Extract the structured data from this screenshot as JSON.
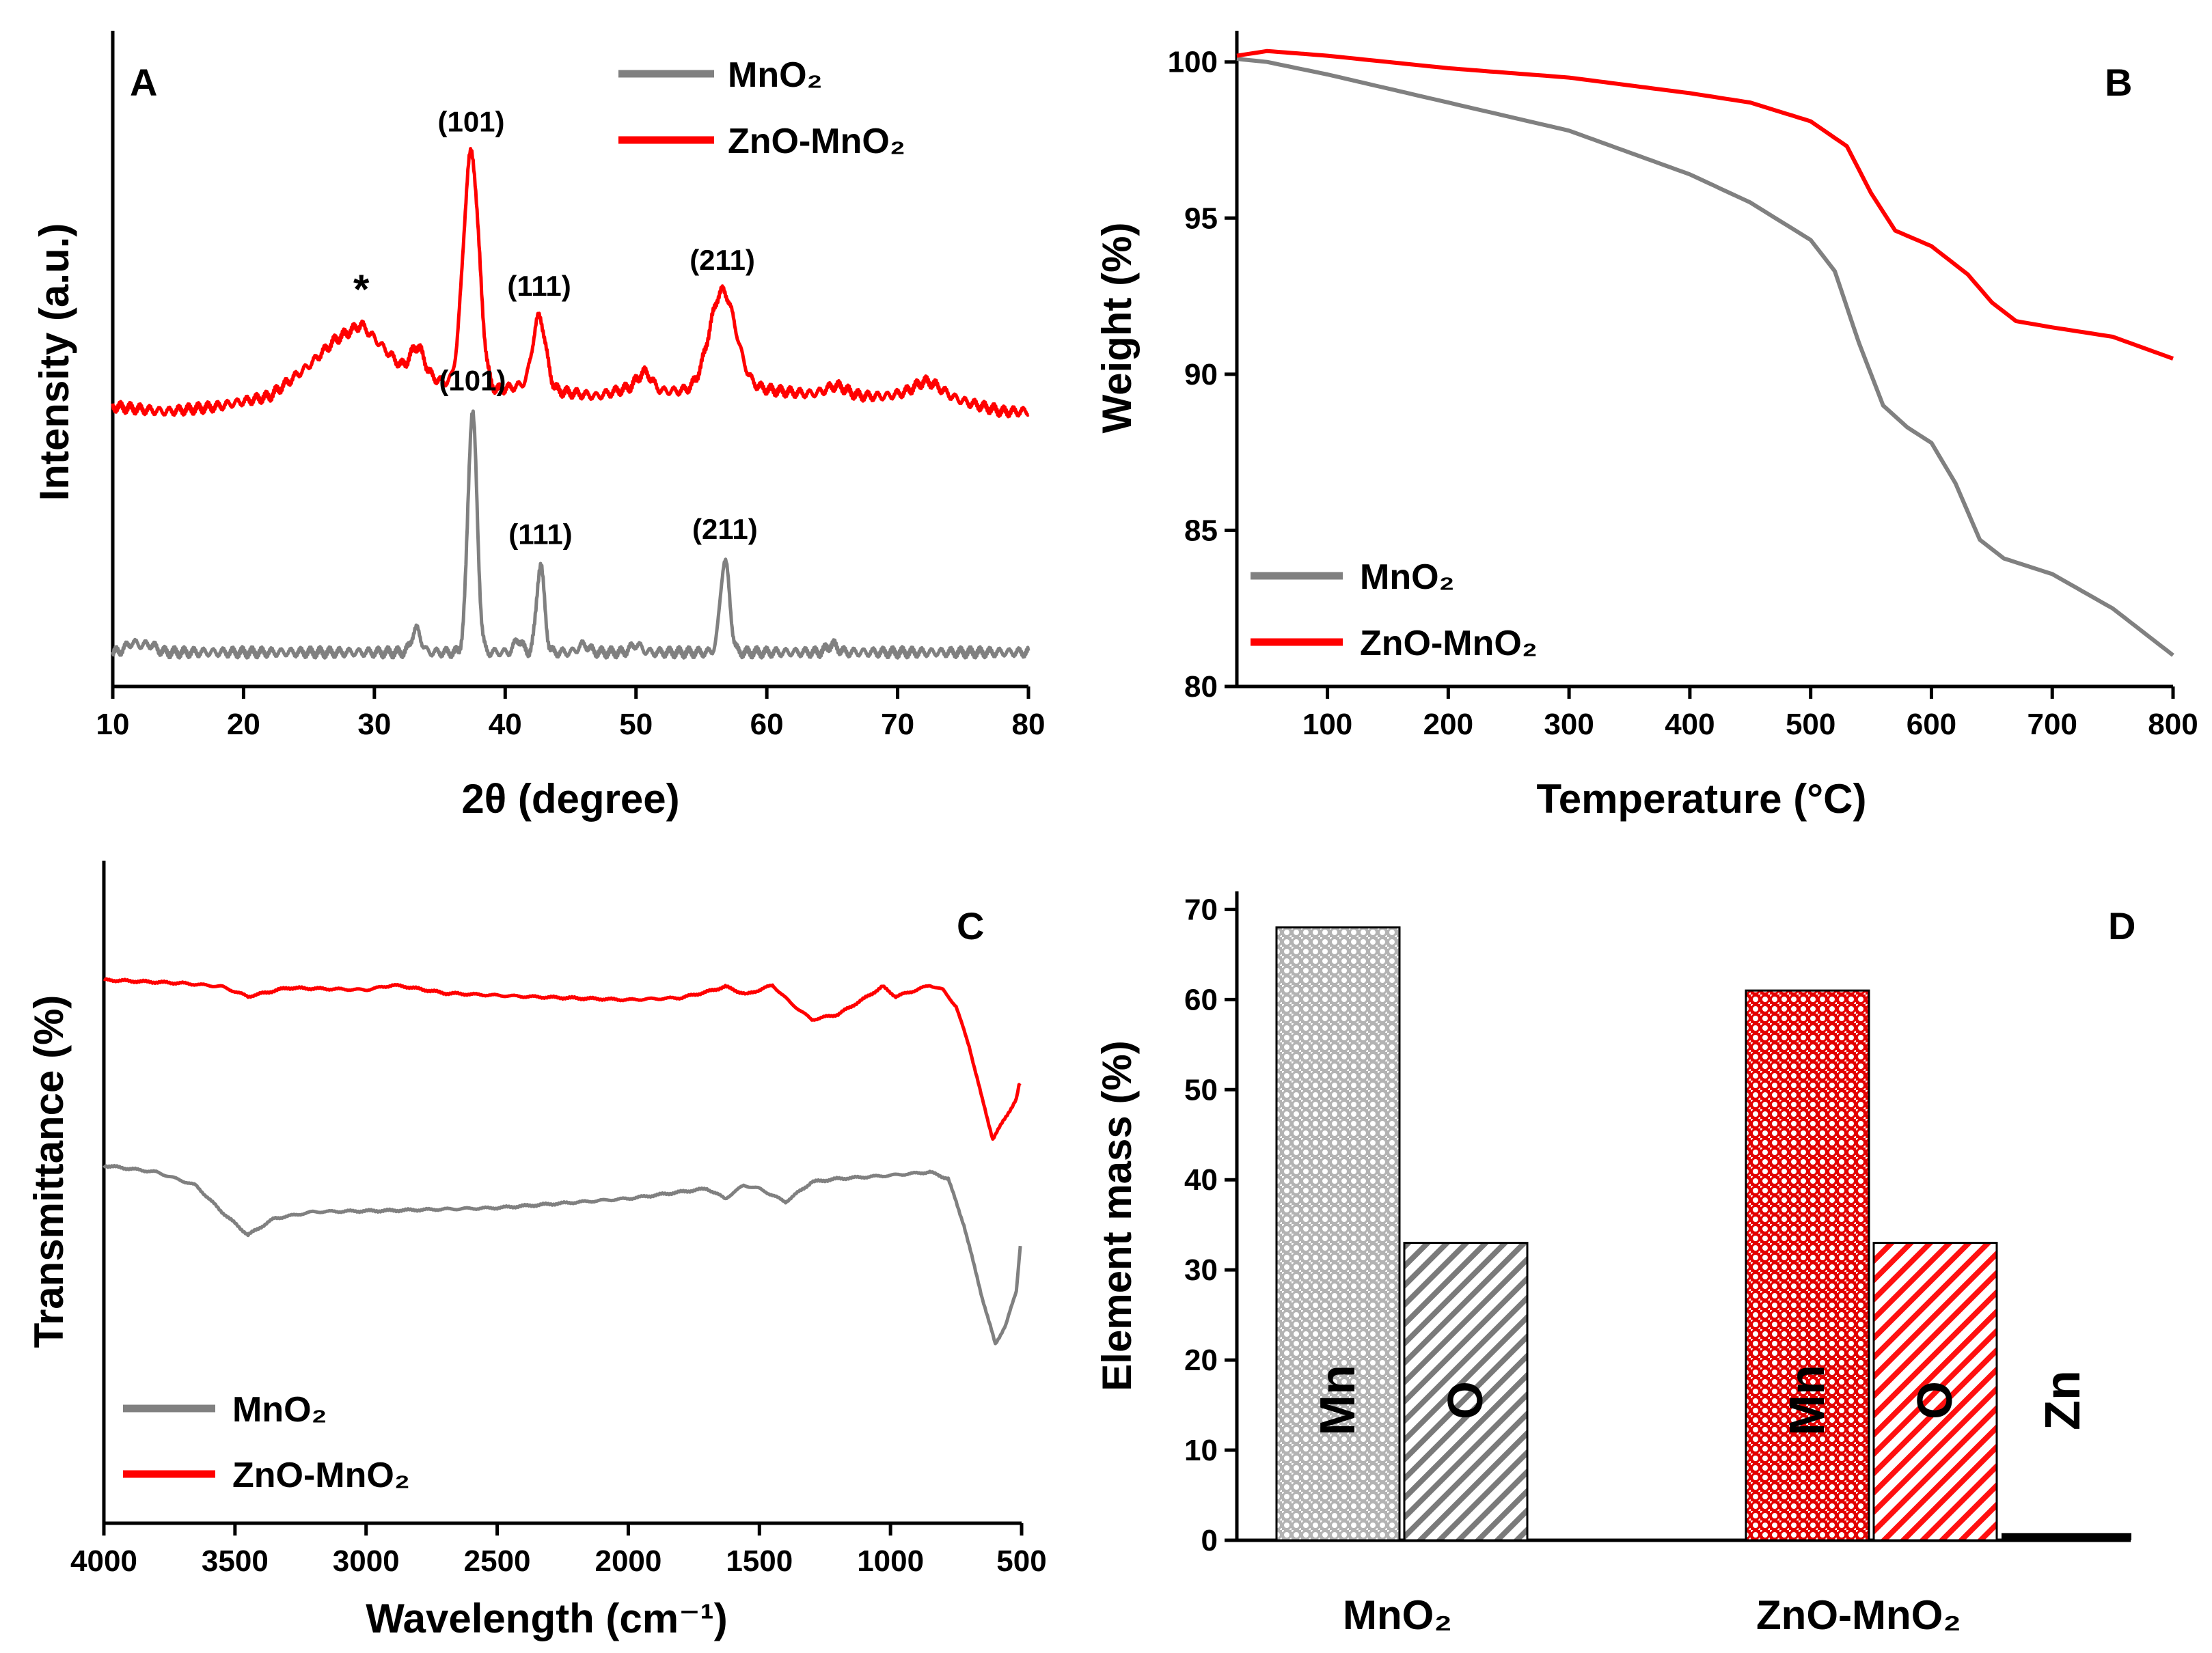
{
  "chart_data": [
    {
      "id": "A",
      "type": "line",
      "panel_label": "A",
      "xlabel": "2θ (degree)",
      "ylabel": "Intensity (a.u.)",
      "xlim": [
        10,
        80
      ],
      "xticks": [
        "10",
        "20",
        "30",
        "40",
        "50",
        "60",
        "70",
        "80"
      ],
      "legend": {
        "placement": "top-right",
        "entries": [
          "MnO₂",
          "ZnO-MnO₂"
        ]
      },
      "series": [
        {
          "name": "ZnO-MnO₂",
          "color": "#ff0000",
          "offset": 48,
          "baseline": [
            [
              10,
              0
            ],
            [
              14,
              -1
            ],
            [
              18,
              0
            ],
            [
              22,
              2
            ],
            [
              25,
              8
            ],
            [
              27,
              13
            ],
            [
              29,
              16
            ],
            [
              30.5,
              12
            ],
            [
              32,
              8
            ],
            [
              34,
              6
            ],
            [
              36,
              4
            ],
            [
              39,
              3
            ],
            [
              41,
              4
            ],
            [
              44,
              3
            ],
            [
              47,
              2
            ],
            [
              50,
              4
            ],
            [
              52,
              3
            ],
            [
              55,
              3
            ],
            [
              58,
              4
            ],
            [
              61,
              3
            ],
            [
              65,
              2
            ],
            [
              69,
              2
            ],
            [
              72,
              3
            ],
            [
              75,
              1
            ],
            [
              78,
              -1
            ],
            [
              80,
              -1
            ]
          ],
          "peaks": [
            [
              33.3,
              5,
              0.5
            ],
            [
              37.4,
              46,
              0.6
            ],
            [
              42.6,
              14,
              0.5
            ],
            [
              50.7,
              3,
              0.5
            ],
            [
              56.6,
              19,
              1.0
            ],
            [
              65.3,
              2,
              0.8
            ],
            [
              72.4,
              2,
              1.0
            ]
          ]
        },
        {
          "name": "MnO₂",
          "color": "#808080",
          "offset": 0,
          "baseline": [
            [
              10,
              0
            ],
            [
              80,
              0
            ]
          ],
          "peaks": [
            [
              11.5,
              1.8,
              0.5
            ],
            [
              12.8,
              1.5,
              0.5
            ],
            [
              33.2,
              4.5,
              0.35
            ],
            [
              37.5,
              47,
              0.35
            ],
            [
              41,
              2.5,
              0.3
            ],
            [
              42.7,
              17,
              0.3
            ],
            [
              46,
              1.5,
              0.4
            ],
            [
              50,
              1.5,
              0.4
            ],
            [
              56.8,
              18,
              0.35
            ],
            [
              65,
              1.5,
              0.4
            ]
          ]
        }
      ],
      "peak_labels": [
        {
          "text": "(101)",
          "x": 37.4,
          "series": "ZnO-MnO₂"
        },
        {
          "text": "*",
          "x": 29,
          "series": "ZnO-MnO₂"
        },
        {
          "text": "(111)",
          "x": 42.6,
          "series": "ZnO-MnO₂"
        },
        {
          "text": "(211)",
          "x": 56.6,
          "series": "ZnO-MnO₂"
        },
        {
          "text": "(101)",
          "x": 37.5,
          "series": "MnO₂"
        },
        {
          "text": "(111)",
          "x": 42.7,
          "series": "MnO₂"
        },
        {
          "text": "(211)",
          "x": 56.8,
          "series": "MnO₂"
        }
      ]
    },
    {
      "id": "B",
      "type": "line",
      "panel_label": "B",
      "xlabel": "Temperature (°C)",
      "ylabel": "Weight (%)",
      "xlim": [
        25,
        800
      ],
      "ylim": [
        80,
        101
      ],
      "xticks": [
        "100",
        "200",
        "300",
        "400",
        "500",
        "600",
        "700",
        "800"
      ],
      "yticks": [
        "80",
        "85",
        "90",
        "95",
        "100"
      ],
      "legend": {
        "placement": "bottom-left",
        "entries": [
          "MnO₂",
          "ZnO-MnO₂"
        ]
      },
      "series": [
        {
          "name": "MnO₂",
          "color": "#808080",
          "points": [
            [
              25,
              100.1
            ],
            [
              50,
              100
            ],
            [
              100,
              99.6
            ],
            [
              200,
              98.7
            ],
            [
              300,
              97.8
            ],
            [
              400,
              96.4
            ],
            [
              450,
              95.5
            ],
            [
              500,
              94.3
            ],
            [
              520,
              93.3
            ],
            [
              540,
              91
            ],
            [
              560,
              89
            ],
            [
              580,
              88.3
            ],
            [
              600,
              87.8
            ],
            [
              620,
              86.5
            ],
            [
              640,
              84.7
            ],
            [
              660,
              84.1
            ],
            [
              700,
              83.6
            ],
            [
              750,
              82.5
            ],
            [
              800,
              81
            ]
          ]
        },
        {
          "name": "ZnO-MnO₂",
          "color": "#ff0000",
          "points": [
            [
              25,
              100.2
            ],
            [
              50,
              100.35
            ],
            [
              100,
              100.2
            ],
            [
              200,
              99.8
            ],
            [
              300,
              99.5
            ],
            [
              400,
              99
            ],
            [
              450,
              98.7
            ],
            [
              500,
              98.1
            ],
            [
              530,
              97.3
            ],
            [
              550,
              95.8
            ],
            [
              570,
              94.6
            ],
            [
              600,
              94.1
            ],
            [
              630,
              93.2
            ],
            [
              650,
              92.3
            ],
            [
              670,
              91.7
            ],
            [
              700,
              91.5
            ],
            [
              750,
              91.2
            ],
            [
              800,
              90.5
            ]
          ]
        }
      ]
    },
    {
      "id": "C",
      "type": "line",
      "panel_label": "C",
      "xlabel": "Wavelength (cm⁻¹)",
      "ylabel": "Transmittance (%)",
      "xlim": [
        4000,
        500
      ],
      "xticks": [
        "4000",
        "3500",
        "3000",
        "2500",
        "2000",
        "1500",
        "1000",
        "500"
      ],
      "legend": {
        "placement": "bottom-left",
        "entries": [
          "MnO₂",
          "ZnO-MnO₂"
        ]
      },
      "series": [
        {
          "name": "ZnO-MnO₂",
          "color": "#ff0000",
          "points": [
            [
              4000,
              0.82
            ],
            [
              3700,
              0.815
            ],
            [
              3550,
              0.81
            ],
            [
              3450,
              0.795
            ],
            [
              3300,
              0.808
            ],
            [
              3000,
              0.805
            ],
            [
              2900,
              0.812
            ],
            [
              2850,
              0.81
            ],
            [
              2700,
              0.8
            ],
            [
              2400,
              0.795
            ],
            [
              2000,
              0.79
            ],
            [
              1800,
              0.793
            ],
            [
              1700,
              0.802
            ],
            [
              1630,
              0.81
            ],
            [
              1550,
              0.798
            ],
            [
              1450,
              0.812
            ],
            [
              1380,
              0.785
            ],
            [
              1300,
              0.76
            ],
            [
              1200,
              0.768
            ],
            [
              1100,
              0.792
            ],
            [
              1030,
              0.81
            ],
            [
              980,
              0.795
            ],
            [
              900,
              0.805
            ],
            [
              850,
              0.812
            ],
            [
              800,
              0.805
            ],
            [
              750,
              0.78
            ],
            [
              700,
              0.72
            ],
            [
              650,
              0.64
            ],
            [
              610,
              0.58
            ],
            [
              580,
              0.6
            ],
            [
              550,
              0.62
            ],
            [
              520,
              0.64
            ],
            [
              510,
              0.66
            ]
          ]
        },
        {
          "name": "MnO₂",
          "color": "#808080",
          "points": [
            [
              4000,
              0.54
            ],
            [
              3800,
              0.53
            ],
            [
              3650,
              0.51
            ],
            [
              3550,
              0.47
            ],
            [
              3450,
              0.435
            ],
            [
              3350,
              0.46
            ],
            [
              3200,
              0.47
            ],
            [
              2900,
              0.472
            ],
            [
              2500,
              0.476
            ],
            [
              2000,
              0.49
            ],
            [
              1700,
              0.505
            ],
            [
              1630,
              0.49
            ],
            [
              1560,
              0.51
            ],
            [
              1500,
              0.505
            ],
            [
              1400,
              0.485
            ],
            [
              1300,
              0.515
            ],
            [
              1200,
              0.52
            ],
            [
              1000,
              0.525
            ],
            [
              850,
              0.53
            ],
            [
              780,
              0.52
            ],
            [
              720,
              0.45
            ],
            [
              650,
              0.34
            ],
            [
              600,
              0.27
            ],
            [
              560,
              0.3
            ],
            [
              520,
              0.35
            ],
            [
              505,
              0.42
            ]
          ]
        }
      ]
    },
    {
      "id": "D",
      "type": "bar",
      "panel_label": "D",
      "xlabel": "",
      "ylabel": "Element mass (%)",
      "ylim": [
        0,
        72
      ],
      "yticks": [
        "0",
        "10",
        "20",
        "30",
        "40",
        "50",
        "60",
        "70"
      ],
      "categories": [
        "MnO₂",
        "ZnO-MnO₂"
      ],
      "bars": [
        {
          "group": "MnO₂",
          "element": "Mn",
          "value": 68,
          "color": "#808080",
          "pattern": "dots"
        },
        {
          "group": "MnO₂",
          "element": "O",
          "value": 33,
          "color": "#808080",
          "pattern": "hatch"
        },
        {
          "group": "ZnO-MnO₂",
          "element": "Mn",
          "value": 61,
          "color": "#ff0000",
          "pattern": "dots"
        },
        {
          "group": "ZnO-MnO₂",
          "element": "O",
          "value": 33,
          "color": "#ff0000",
          "pattern": "hatch"
        },
        {
          "group": "ZnO-MnO₂",
          "element": "Zn",
          "value": 0.5,
          "color": "#000000",
          "pattern": "solid"
        }
      ]
    }
  ]
}
